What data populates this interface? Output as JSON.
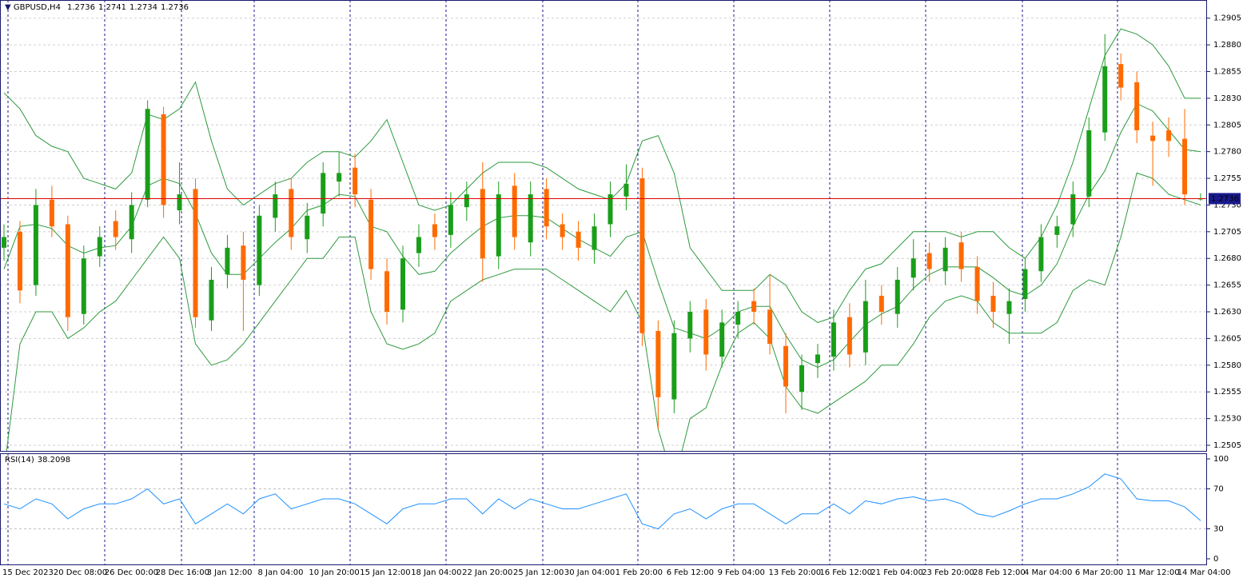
{
  "chart_data": {
    "type": "candlestick",
    "symbol": "GBPUSD,H4",
    "open": [
      1.269,
      1.2705,
      1.2655,
      1.2735,
      1.2712,
      1.2628,
      1.2682,
      1.2715,
      1.2698,
      1.2735,
      1.2815,
      1.2725,
      1.2745,
      1.2622,
      1.2665,
      1.2692,
      1.2655,
      1.2718,
      1.2745,
      1.2698,
      1.2722,
      1.2752,
      1.2765,
      1.2735,
      1.2668,
      1.2632,
      1.2685,
      1.2712,
      1.2702,
      1.2728,
      1.2745,
      1.2682,
      1.2748,
      1.2695,
      1.2745,
      1.2712,
      1.2705,
      1.2688,
      1.2712,
      1.2738,
      1.2755,
      1.2612,
      1.2548,
      1.2605,
      1.2632,
      1.2588,
      1.2618,
      1.264,
      1.2632,
      1.2598,
      1.2555,
      1.2582,
      1.2588,
      1.2625,
      1.2592,
      1.2645,
      1.2628,
      1.2662,
      1.2685,
      1.2668,
      1.2695,
      1.2672,
      1.2645,
      1.2628,
      1.2642,
      1.2668,
      1.2702,
      1.2712,
      1.2738,
      1.2798,
      1.2862,
      1.2845,
      1.2795,
      1.28,
      1.2792,
      1.2736
    ],
    "high": [
      1.2712,
      1.2715,
      1.2745,
      1.2748,
      1.272,
      1.2692,
      1.271,
      1.2725,
      1.2742,
      1.2828,
      1.2822,
      1.277,
      1.2755,
      1.2672,
      1.2702,
      1.2705,
      1.273,
      1.2752,
      1.2755,
      1.2732,
      1.277,
      1.278,
      1.2778,
      1.2745,
      1.268,
      1.2692,
      1.2712,
      1.2722,
      1.2742,
      1.2752,
      1.277,
      1.2752,
      1.276,
      1.2752,
      1.2755,
      1.2722,
      1.2715,
      1.2722,
      1.2752,
      1.2768,
      1.2765,
      1.2622,
      1.2622,
      1.264,
      1.2642,
      1.2632,
      1.264,
      1.2652,
      1.2665,
      1.261,
      1.259,
      1.26,
      1.2632,
      1.2638,
      1.266,
      1.2655,
      1.2672,
      1.2698,
      1.2695,
      1.27,
      1.2705,
      1.2682,
      1.2658,
      1.2652,
      1.268,
      1.2712,
      1.272,
      1.2752,
      1.2812,
      1.289,
      1.2872,
      1.2855,
      1.2808,
      1.2812,
      1.282,
      1.2741
    ],
    "low": [
      1.2678,
      1.2638,
      1.2645,
      1.27,
      1.2612,
      1.2618,
      1.2672,
      1.2688,
      1.2685,
      1.2728,
      1.2718,
      1.2712,
      1.2615,
      1.2612,
      1.2652,
      1.2612,
      1.2645,
      1.2705,
      1.2688,
      1.2685,
      1.271,
      1.2738,
      1.2728,
      1.266,
      1.2618,
      1.262,
      1.2672,
      1.2688,
      1.269,
      1.2715,
      1.2658,
      1.267,
      1.2688,
      1.2682,
      1.2698,
      1.2688,
      1.2678,
      1.2675,
      1.27,
      1.2725,
      1.2598,
      1.252,
      1.2535,
      1.2592,
      1.2575,
      1.2578,
      1.2605,
      1.2618,
      1.259,
      1.2535,
      1.2538,
      1.2568,
      1.2575,
      1.2578,
      1.258,
      1.2618,
      1.2615,
      1.265,
      1.2658,
      1.2655,
      1.2658,
      1.2628,
      1.2615,
      1.26,
      1.263,
      1.2658,
      1.269,
      1.27,
      1.2728,
      1.279,
      1.2828,
      1.2788,
      1.2748,
      1.2775,
      1.273,
      1.2734
    ],
    "close": [
      1.27,
      1.265,
      1.273,
      1.271,
      1.2625,
      1.268,
      1.27,
      1.27,
      1.273,
      1.282,
      1.273,
      1.274,
      1.2625,
      1.266,
      1.269,
      1.266,
      1.272,
      1.274,
      1.27,
      1.272,
      1.276,
      1.276,
      1.274,
      1.267,
      1.263,
      1.268,
      1.27,
      1.27,
      1.273,
      1.274,
      1.268,
      1.274,
      1.27,
      1.274,
      1.271,
      1.27,
      1.269,
      1.271,
      1.274,
      1.275,
      1.261,
      1.255,
      1.261,
      1.263,
      1.259,
      1.262,
      1.263,
      1.263,
      1.26,
      1.256,
      1.258,
      1.259,
      1.262,
      1.259,
      1.264,
      1.263,
      1.266,
      1.268,
      1.267,
      1.269,
      1.267,
      1.264,
      1.263,
      1.264,
      1.267,
      1.27,
      1.271,
      1.274,
      1.28,
      1.286,
      1.284,
      1.28,
      1.279,
      1.279,
      1.274,
      1.2736
    ],
    "up_color": "#1a9e1a",
    "down_color": "#ff6a00",
    "band_color": "#2e9a3e",
    "upper": [
      1.2835,
      1.282,
      1.2795,
      1.2785,
      1.278,
      1.2755,
      1.275,
      1.2745,
      1.276,
      1.2815,
      1.281,
      1.282,
      1.2845,
      1.279,
      1.2745,
      1.273,
      1.274,
      1.275,
      1.2755,
      1.277,
      1.278,
      1.278,
      1.2775,
      1.279,
      1.281,
      1.277,
      1.273,
      1.2725,
      1.273,
      1.2745,
      1.276,
      1.277,
      1.277,
      1.277,
      1.2765,
      1.2755,
      1.2745,
      1.274,
      1.2735,
      1.275,
      1.279,
      1.2795,
      1.276,
      1.269,
      1.267,
      1.265,
      1.265,
      1.265,
      1.2665,
      1.2655,
      1.263,
      1.262,
      1.2625,
      1.265,
      1.267,
      1.2675,
      1.269,
      1.2705,
      1.2705,
      1.2705,
      1.27,
      1.2705,
      1.2705,
      1.269,
      1.268,
      1.27,
      1.273,
      1.277,
      1.282,
      1.287,
      1.2895,
      1.289,
      1.288,
      1.286,
      1.283,
      1.283
    ],
    "middle": [
      1.267,
      1.271,
      1.2712,
      1.2708,
      1.2692,
      1.2685,
      1.269,
      1.2692,
      1.271,
      1.2748,
      1.2755,
      1.275,
      1.2722,
      1.2685,
      1.2665,
      1.2665,
      1.268,
      1.2695,
      1.2708,
      1.2725,
      1.273,
      1.274,
      1.2738,
      1.271,
      1.2705,
      1.2682,
      1.2665,
      1.2668,
      1.2685,
      1.2698,
      1.271,
      1.2718,
      1.272,
      1.272,
      1.2718,
      1.2708,
      1.2698,
      1.269,
      1.2682,
      1.27,
      1.2705,
      1.2658,
      1.2615,
      1.261,
      1.2605,
      1.2615,
      1.263,
      1.2635,
      1.2635,
      1.2608,
      1.2585,
      1.2578,
      1.2585,
      1.2602,
      1.2618,
      1.2628,
      1.2635,
      1.2652,
      1.2665,
      1.2672,
      1.2672,
      1.2672,
      1.2662,
      1.265,
      1.2645,
      1.2655,
      1.2675,
      1.271,
      1.274,
      1.2762,
      1.2798,
      1.2825,
      1.2818,
      1.28,
      1.2782,
      1.278
    ],
    "lower": [
      1.248,
      1.26,
      1.263,
      1.263,
      1.2605,
      1.2615,
      1.263,
      1.264,
      1.266,
      1.268,
      1.27,
      1.268,
      1.26,
      1.258,
      1.2585,
      1.26,
      1.262,
      1.264,
      1.266,
      1.268,
      1.268,
      1.27,
      1.27,
      1.263,
      1.26,
      1.2595,
      1.26,
      1.261,
      1.264,
      1.265,
      1.266,
      1.2665,
      1.267,
      1.267,
      1.267,
      1.266,
      1.265,
      1.264,
      1.263,
      1.265,
      1.262,
      1.252,
      1.247,
      1.253,
      1.254,
      1.258,
      1.261,
      1.262,
      1.2605,
      1.256,
      1.254,
      1.2535,
      1.2545,
      1.2555,
      1.2565,
      1.258,
      1.258,
      1.26,
      1.2625,
      1.264,
      1.2645,
      1.264,
      1.262,
      1.261,
      1.261,
      1.261,
      1.262,
      1.265,
      1.266,
      1.2655,
      1.27,
      1.276,
      1.2755,
      1.274,
      1.2735,
      1.273
    ],
    "price_line_color": "#e00000",
    "ylim": [
      1.2499,
      1.2922
    ],
    "yticks": [
      1.2505,
      {
        "value": 1.253,
        "label": "1.2530"
      },
      1.2555,
      {
        "value": 1.258,
        "label": "1.2580"
      },
      1.2605,
      {
        "value": 1.263,
        "label": "1.2630"
      },
      1.2655,
      {
        "value": 1.268,
        "label": "1.2680"
      },
      1.2705,
      {
        "value": 1.273,
        "label": "1.2730"
      },
      1.2755,
      {
        "value": 1.278,
        "label": "1.2780"
      },
      1.2805,
      {
        "value": 1.283,
        "label": "1.2830"
      },
      1.2855,
      {
        "value": 1.288,
        "label": "1.2880"
      },
      1.2905
    ],
    "grid": true,
    "x_labels": [
      "15 Dec 2023",
      "20 Dec 08:00",
      "26 Dec 00:00",
      "28 Dec 16:00",
      "3 Jan 12:00",
      "8 Jan 04:00",
      "10 Jan 20:00",
      "15 Jan 12:00",
      "18 Jan 04:00",
      "22 Jan 20:00",
      "25 Jan 12:00",
      "30 Jan 04:00",
      "1 Feb 20:00",
      "6 Feb 12:00",
      "9 Feb 04:00",
      "13 Feb 20:00",
      "16 Feb 12:00",
      "21 Feb 04:00",
      "23 Feb 20:00",
      "28 Feb 12:00",
      "4 Mar 04:00",
      "6 Mar 20:00",
      "11 Mar 12:00",
      "14 Mar 04:00"
    ],
    "rsi": {
      "label": "RSI(14)",
      "color": "#1e90ff",
      "ylim": [
        -6.4,
        105.6
      ],
      "yticks": [
        0,
        30,
        70,
        100
      ],
      "values": [
        55,
        50,
        60,
        55,
        40,
        50,
        55,
        55,
        60,
        70,
        55,
        60,
        35,
        45,
        55,
        45,
        60,
        65,
        50,
        55,
        60,
        60,
        55,
        45,
        35,
        50,
        55,
        55,
        60,
        60,
        45,
        60,
        50,
        60,
        55,
        50,
        50,
        55,
        60,
        65,
        35,
        30,
        45,
        50,
        40,
        50,
        55,
        55,
        45,
        35,
        45,
        45,
        55,
        45,
        58,
        55,
        60,
        62,
        58,
        60,
        55,
        45,
        42,
        48,
        55,
        60,
        60,
        65,
        72,
        85,
        80,
        60,
        58,
        58,
        52,
        38.2098
      ]
    }
  }
}
